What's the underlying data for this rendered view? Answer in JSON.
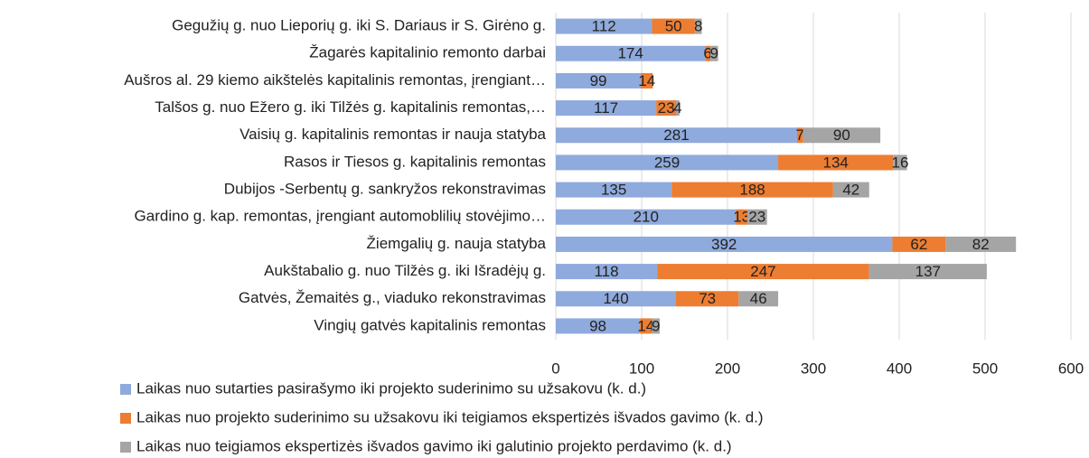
{
  "chart_data": {
    "type": "bar",
    "orientation": "horizontal",
    "stacked": true,
    "grid": true,
    "categories": [
      "Gegužių g. nuo Lieporių g. iki S. Dariaus ir S. Girėno g.",
      "Žagarės kapitalinio remonto darbai",
      "Aušros al. 29 kiemo aikštelės kapitalinis remontas, įrengiant…",
      "Talšos  g. nuo  Ežero g. iki Tilžės g. kapitalinis remontas,…",
      "Vaisių g. kapitalinis remontas ir nauja statyba",
      "Rasos ir Tiesos g. kapitalinis remontas",
      "Dubijos -Serbentų g. sankryžos rekonstravimas",
      "Gardino g. kap. remontas, įrengiant automoblilių stovėjimo…",
      "Žiemgalių g. nauja statyba",
      "Aukštabalio g. nuo Tilžės g. iki Išradėjų g.",
      "Gatvės, Žemaitės g., viaduko  rekonstravimas",
      "Vingių gatvės kapitalinis remontas"
    ],
    "series": [
      {
        "name": "Laikas nuo sutarties pasirašymo iki projekto suderinimo su užsakovu  (k. d.)",
        "color": "#8faadc",
        "values": [
          112,
          174,
          99,
          117,
          281,
          259,
          135,
          210,
          392,
          118,
          140,
          98
        ]
      },
      {
        "name": "Laikas nuo projekto suderinimo su užsakovu iki teigiamos ekspertizės išvados gavimo (k. d.)",
        "color": "#ed7d31",
        "values": [
          50,
          6,
          14,
          23,
          7,
          134,
          188,
          13,
          62,
          247,
          73,
          14
        ]
      },
      {
        "name": "Laikas nuo teigiamos ekspertizės išvados gavimo iki galutinio projekto perdavimo (k. d.)",
        "color": "#a5a5a5",
        "values": [
          8,
          9,
          null,
          4,
          90,
          16,
          42,
          23,
          82,
          137,
          46,
          9
        ]
      }
    ],
    "xlim": [
      0,
      600
    ],
    "xticks": [
      0,
      100,
      200,
      300,
      400,
      500,
      600
    ]
  }
}
